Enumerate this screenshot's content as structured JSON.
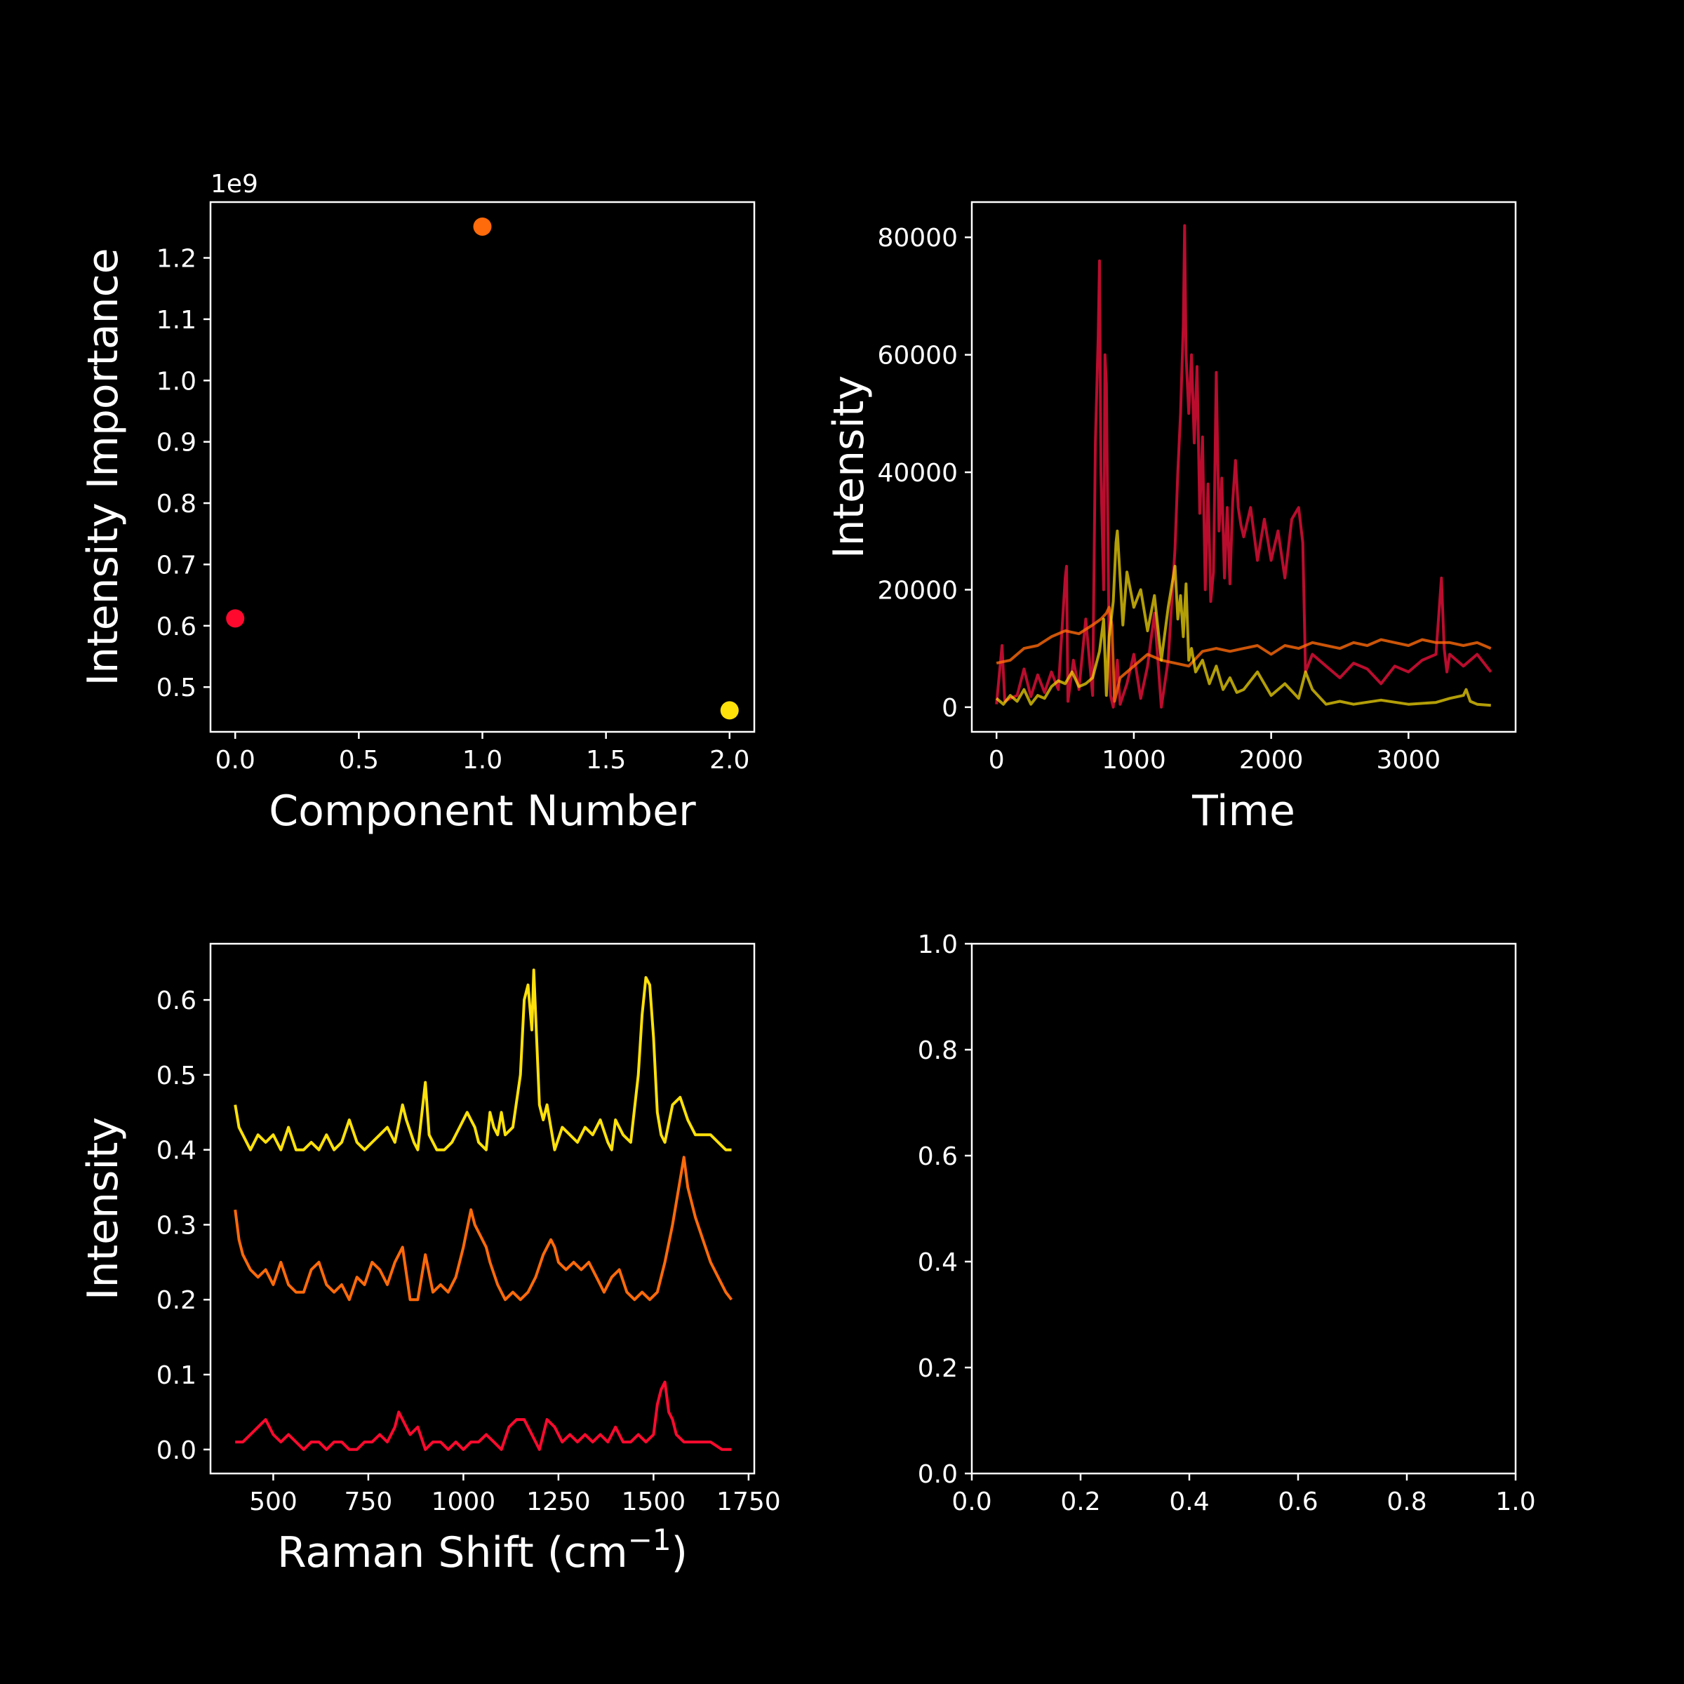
{
  "chart_data": [
    {
      "type": "scatter",
      "xlabel": "Component Number",
      "ylabel": "Intensity Importance",
      "offset_text": "1e9",
      "xlim": [
        -0.1,
        2.1
      ],
      "ylim": [
        0.427,
        1.291
      ],
      "xticks": [
        0.0,
        0.5,
        1.0,
        1.5,
        2.0
      ],
      "xtick_labels": [
        "0.0",
        "0.5",
        "1.0",
        "1.5",
        "2.0"
      ],
      "yticks": [
        0.5,
        0.6,
        0.7,
        0.8,
        0.9,
        1.0,
        1.1,
        1.2
      ],
      "ytick_labels": [
        "0.5",
        "0.6",
        "0.7",
        "0.8",
        "0.9",
        "1.0",
        "1.1",
        "1.2"
      ],
      "points": [
        {
          "x": 0,
          "y": 0.612,
          "color": "#ff0a2e"
        },
        {
          "x": 1,
          "y": 1.251,
          "color": "#ff6a0a"
        },
        {
          "x": 2,
          "y": 0.462,
          "color": "#ffe10a"
        }
      ]
    },
    {
      "type": "line",
      "xlabel": "Time",
      "ylabel": "Intensity",
      "xlim": [
        -180,
        3780
      ],
      "ylim": [
        -4200,
        86000
      ],
      "xticks": [
        0,
        1000,
        2000,
        3000
      ],
      "xtick_labels": [
        "0",
        "1000",
        "2000",
        "3000"
      ],
      "yticks": [
        0,
        20000,
        40000,
        60000,
        80000
      ],
      "ytick_labels": [
        "0",
        "20000",
        "40000",
        "60000",
        "80000"
      ],
      "series": [
        {
          "color": "#e8103a",
          "opacity": 0.8,
          "x": [
            0,
            40,
            60,
            100,
            150,
            200,
            250,
            300,
            350,
            400,
            450,
            500,
            510,
            520,
            560,
            600,
            650,
            700,
            720,
            740,
            750,
            760,
            780,
            790,
            800,
            820,
            830,
            850,
            880,
            900,
            950,
            1000,
            1050,
            1100,
            1150,
            1200,
            1250,
            1300,
            1320,
            1340,
            1360,
            1370,
            1380,
            1400,
            1420,
            1440,
            1460,
            1480,
            1500,
            1520,
            1540,
            1560,
            1580,
            1600,
            1620,
            1640,
            1660,
            1680,
            1700,
            1720,
            1740,
            1760,
            1780,
            1800,
            1850,
            1900,
            1950,
            2000,
            2050,
            2100,
            2150,
            2200,
            2230,
            2250,
            2300,
            2400,
            2500,
            2600,
            2700,
            2800,
            2900,
            3000,
            3100,
            3200,
            3240,
            3260,
            3280,
            3300,
            3400,
            3500,
            3600
          ],
          "y": [
            500,
            10500,
            1000,
            1500,
            2000,
            6500,
            1800,
            5500,
            2500,
            6000,
            3000,
            22000,
            24000,
            1000,
            8000,
            3000,
            15000,
            2000,
            45000,
            63000,
            76000,
            40000,
            20000,
            60000,
            55000,
            10000,
            2000,
            0,
            8000,
            500,
            4000,
            9000,
            1500,
            7000,
            16000,
            0,
            8000,
            27000,
            40000,
            50000,
            65000,
            82000,
            60000,
            50000,
            60000,
            45000,
            58000,
            33000,
            46000,
            20000,
            38000,
            18000,
            23000,
            57000,
            30000,
            39000,
            22000,
            34000,
            21000,
            35000,
            42000,
            34000,
            31000,
            29000,
            34000,
            25000,
            32000,
            25000,
            30000,
            22000,
            32000,
            34000,
            28000,
            6000,
            9000,
            7000,
            5000,
            7500,
            6500,
            4000,
            7000,
            6000,
            8000,
            9000,
            22000,
            10000,
            6000,
            9000,
            7000,
            9000,
            6000
          ]
        },
        {
          "color": "#ff6a0a",
          "opacity": 0.8,
          "x": [
            0,
            100,
            200,
            300,
            400,
            500,
            600,
            700,
            760,
            800,
            820,
            840,
            860,
            900,
            1000,
            1100,
            1200,
            1300,
            1400,
            1500,
            1600,
            1700,
            1800,
            1900,
            2000,
            2100,
            2200,
            2300,
            2400,
            2500,
            2600,
            2700,
            2800,
            2900,
            3000,
            3100,
            3200,
            3300,
            3400,
            3500,
            3600
          ],
          "y": [
            7500,
            8000,
            10000,
            10500,
            12000,
            13000,
            12500,
            14000,
            15000,
            16000,
            17000,
            14000,
            1000,
            5000,
            7000,
            9000,
            8000,
            7500,
            7000,
            9500,
            10000,
            9500,
            10000,
            10500,
            9000,
            10500,
            10000,
            11000,
            10500,
            10000,
            11000,
            10500,
            11500,
            11000,
            10500,
            11500,
            11000,
            11000,
            10500,
            11000,
            10000
          ]
        },
        {
          "color": "#ffe10a",
          "opacity": 0.7,
          "x": [
            0,
            50,
            100,
            150,
            200,
            250,
            300,
            350,
            400,
            450,
            500,
            550,
            600,
            650,
            700,
            750,
            780,
            800,
            820,
            850,
            870,
            880,
            900,
            920,
            950,
            1000,
            1050,
            1100,
            1150,
            1200,
            1250,
            1300,
            1320,
            1340,
            1360,
            1380,
            1400,
            1420,
            1450,
            1500,
            1550,
            1600,
            1650,
            1700,
            1750,
            1800,
            1900,
            2000,
            2100,
            2200,
            2250,
            2300,
            2400,
            2500,
            2600,
            2800,
            3000,
            3200,
            3300,
            3400,
            3420,
            3450,
            3500,
            3600
          ],
          "y": [
            1500,
            500,
            2000,
            1000,
            3000,
            500,
            2000,
            1500,
            3500,
            4500,
            4000,
            6000,
            3500,
            4000,
            5000,
            9500,
            15000,
            2000,
            12000,
            18000,
            28000,
            30000,
            22000,
            14000,
            23000,
            17000,
            20000,
            13000,
            19000,
            8000,
            17000,
            24000,
            15000,
            19000,
            12000,
            21000,
            8000,
            10000,
            6000,
            8000,
            4000,
            7000,
            3000,
            5000,
            2500,
            3000,
            6000,
            2000,
            4000,
            1500,
            6000,
            3000,
            500,
            1000,
            500,
            1200,
            500,
            800,
            1500,
            2000,
            3000,
            1000,
            500,
            300
          ]
        }
      ]
    },
    {
      "type": "line",
      "xlabel": "Raman Shift (cm$^{-1}$)",
      "ylabel": "Intensity",
      "xlim": [
        335,
        1765
      ],
      "ylim": [
        -0.032,
        0.675
      ],
      "xticks": [
        500,
        750,
        1000,
        1250,
        1500,
        1750
      ],
      "xtick_labels": [
        "500",
        "750",
        "1000",
        "1250",
        "1500",
        "1750"
      ],
      "yticks": [
        0.0,
        0.1,
        0.2,
        0.3,
        0.4,
        0.5,
        0.6
      ],
      "ytick_labels": [
        "0.0",
        "0.1",
        "0.2",
        "0.3",
        "0.4",
        "0.5",
        "0.6"
      ],
      "series": [
        {
          "color": "#ffe10a",
          "x": [
            400,
            410,
            420,
            440,
            460,
            480,
            500,
            520,
            540,
            560,
            580,
            600,
            620,
            640,
            660,
            680,
            700,
            720,
            740,
            760,
            780,
            800,
            820,
            840,
            850,
            870,
            880,
            900,
            910,
            930,
            950,
            970,
            990,
            1010,
            1020,
            1030,
            1040,
            1060,
            1070,
            1080,
            1090,
            1100,
            1110,
            1130,
            1150,
            1160,
            1170,
            1180,
            1185,
            1190,
            1200,
            1210,
            1220,
            1240,
            1260,
            1280,
            1300,
            1320,
            1340,
            1360,
            1380,
            1390,
            1400,
            1420,
            1440,
            1460,
            1470,
            1480,
            1490,
            1500,
            1510,
            1520,
            1530,
            1550,
            1570,
            1590,
            1610,
            1630,
            1650,
            1670,
            1690,
            1705
          ],
          "y": [
            0.46,
            0.43,
            0.42,
            0.4,
            0.42,
            0.41,
            0.42,
            0.4,
            0.43,
            0.4,
            0.4,
            0.41,
            0.4,
            0.42,
            0.4,
            0.41,
            0.44,
            0.41,
            0.4,
            0.41,
            0.42,
            0.43,
            0.41,
            0.46,
            0.44,
            0.41,
            0.4,
            0.49,
            0.42,
            0.4,
            0.4,
            0.41,
            0.43,
            0.45,
            0.44,
            0.43,
            0.41,
            0.4,
            0.45,
            0.43,
            0.42,
            0.45,
            0.42,
            0.43,
            0.5,
            0.6,
            0.62,
            0.56,
            0.64,
            0.58,
            0.46,
            0.44,
            0.46,
            0.4,
            0.43,
            0.42,
            0.41,
            0.43,
            0.42,
            0.44,
            0.41,
            0.4,
            0.44,
            0.42,
            0.41,
            0.5,
            0.58,
            0.63,
            0.62,
            0.55,
            0.45,
            0.42,
            0.41,
            0.46,
            0.47,
            0.44,
            0.42,
            0.42,
            0.42,
            0.41,
            0.4,
            0.4
          ]
        },
        {
          "color": "#ff6a0a",
          "x": [
            400,
            410,
            420,
            440,
            460,
            480,
            500,
            520,
            540,
            560,
            580,
            600,
            620,
            640,
            660,
            680,
            700,
            720,
            740,
            760,
            780,
            800,
            820,
            840,
            860,
            880,
            900,
            920,
            940,
            960,
            980,
            1000,
            1020,
            1030,
            1040,
            1060,
            1070,
            1090,
            1110,
            1130,
            1150,
            1170,
            1190,
            1210,
            1230,
            1240,
            1250,
            1270,
            1290,
            1310,
            1330,
            1350,
            1370,
            1390,
            1410,
            1430,
            1450,
            1470,
            1490,
            1510,
            1530,
            1550,
            1570,
            1580,
            1590,
            1610,
            1630,
            1650,
            1670,
            1690,
            1705
          ],
          "y": [
            0.32,
            0.28,
            0.26,
            0.24,
            0.23,
            0.24,
            0.22,
            0.25,
            0.22,
            0.21,
            0.21,
            0.24,
            0.25,
            0.22,
            0.21,
            0.22,
            0.2,
            0.23,
            0.22,
            0.25,
            0.24,
            0.22,
            0.25,
            0.27,
            0.2,
            0.2,
            0.26,
            0.21,
            0.22,
            0.21,
            0.23,
            0.27,
            0.32,
            0.3,
            0.29,
            0.27,
            0.25,
            0.22,
            0.2,
            0.21,
            0.2,
            0.21,
            0.23,
            0.26,
            0.28,
            0.27,
            0.25,
            0.24,
            0.25,
            0.24,
            0.25,
            0.23,
            0.21,
            0.23,
            0.24,
            0.21,
            0.2,
            0.21,
            0.2,
            0.21,
            0.25,
            0.3,
            0.36,
            0.39,
            0.35,
            0.31,
            0.28,
            0.25,
            0.23,
            0.21,
            0.2
          ]
        },
        {
          "color": "#ff0a2e",
          "x": [
            400,
            420,
            440,
            460,
            480,
            500,
            520,
            540,
            560,
            580,
            600,
            620,
            640,
            660,
            680,
            700,
            720,
            740,
            760,
            780,
            800,
            820,
            830,
            840,
            860,
            880,
            900,
            920,
            940,
            960,
            980,
            1000,
            1020,
            1040,
            1060,
            1080,
            1100,
            1120,
            1140,
            1160,
            1180,
            1200,
            1220,
            1240,
            1260,
            1280,
            1300,
            1320,
            1340,
            1360,
            1380,
            1400,
            1420,
            1440,
            1460,
            1480,
            1500,
            1510,
            1520,
            1530,
            1540,
            1550,
            1560,
            1580,
            1600,
            1620,
            1650,
            1680,
            1705
          ],
          "y": [
            0.01,
            0.01,
            0.02,
            0.03,
            0.04,
            0.02,
            0.01,
            0.02,
            0.01,
            0.0,
            0.01,
            0.01,
            0.0,
            0.01,
            0.01,
            0.0,
            0.0,
            0.01,
            0.01,
            0.02,
            0.01,
            0.03,
            0.05,
            0.04,
            0.02,
            0.03,
            0.0,
            0.01,
            0.01,
            0.0,
            0.01,
            0.0,
            0.01,
            0.01,
            0.02,
            0.01,
            0.0,
            0.03,
            0.04,
            0.04,
            0.02,
            0.0,
            0.04,
            0.03,
            0.01,
            0.02,
            0.01,
            0.02,
            0.01,
            0.02,
            0.01,
            0.03,
            0.01,
            0.01,
            0.02,
            0.01,
            0.02,
            0.06,
            0.08,
            0.09,
            0.05,
            0.04,
            0.02,
            0.01,
            0.01,
            0.01,
            0.01,
            0.0,
            0.0
          ]
        }
      ]
    },
    {
      "type": "line",
      "xlabel": "",
      "ylabel": "",
      "xlim": [
        0,
        1
      ],
      "ylim": [
        0,
        1
      ],
      "xticks": [
        0.0,
        0.2,
        0.4,
        0.6,
        0.8,
        1.0
      ],
      "xtick_labels": [
        "0.0",
        "0.2",
        "0.4",
        "0.6",
        "0.8",
        "1.0"
      ],
      "yticks": [
        0.0,
        0.2,
        0.4,
        0.6,
        0.8,
        1.0
      ],
      "ytick_labels": [
        "0.0",
        "0.2",
        "0.4",
        "0.6",
        "0.8",
        "1.0"
      ],
      "series": []
    }
  ]
}
